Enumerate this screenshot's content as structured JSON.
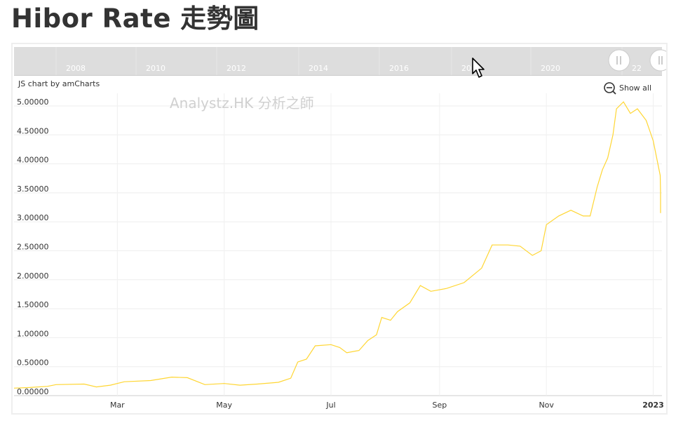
{
  "page": {
    "title": "Hibor Rate 走勢圖"
  },
  "chart_ui": {
    "credit": "JS chart by amCharts",
    "watermark": "Analystz.HK 分析之師",
    "show_all_label": "Show all",
    "scrollbar_years": [
      "2008",
      "2010",
      "2012",
      "2014",
      "2016",
      "20",
      "2020",
      "22"
    ]
  },
  "colors": {
    "series": "#FFD633",
    "title": "#333333",
    "grid": "#e6e6e6",
    "scrollbar": "#dddddd"
  },
  "chart_data": {
    "type": "line",
    "title": "Hibor Rate 走勢圖",
    "xlabel": "",
    "ylabel": "",
    "x_range": [
      "2022-01-01",
      "2023-01-06"
    ],
    "x_tick_labels": [
      {
        "label": "Mar",
        "date": "2022-03-01",
        "bold": false
      },
      {
        "label": "May",
        "date": "2022-05-01",
        "bold": false
      },
      {
        "label": "Jul",
        "date": "2022-07-01",
        "bold": false
      },
      {
        "label": "Sep",
        "date": "2022-09-01",
        "bold": false
      },
      {
        "label": "Nov",
        "date": "2022-11-01",
        "bold": false
      },
      {
        "label": "2023",
        "date": "2023-01-01",
        "bold": true
      }
    ],
    "y_ticks": [
      "0.00000",
      "0.50000",
      "1.00000",
      "1.50000",
      "2.00000",
      "2.50000",
      "3.00000",
      "3.50000",
      "4.00000",
      "4.50000",
      "5.00000"
    ],
    "ylim": [
      0,
      5.0
    ],
    "grid": true,
    "series": [
      {
        "values": [
          [
            "2022-01-01",
            0.13
          ],
          [
            "2022-01-10",
            0.14
          ],
          [
            "2022-01-20",
            0.16
          ],
          [
            "2022-01-25",
            0.19
          ],
          [
            "2022-02-10",
            0.2
          ],
          [
            "2022-02-17",
            0.15
          ],
          [
            "2022-02-25",
            0.18
          ],
          [
            "2022-03-05",
            0.24
          ],
          [
            "2022-03-20",
            0.26
          ],
          [
            "2022-04-01",
            0.32
          ],
          [
            "2022-04-10",
            0.31
          ],
          [
            "2022-04-20",
            0.19
          ],
          [
            "2022-05-01",
            0.21
          ],
          [
            "2022-05-10",
            0.18
          ],
          [
            "2022-05-20",
            0.2
          ],
          [
            "2022-06-01",
            0.23
          ],
          [
            "2022-06-08",
            0.3
          ],
          [
            "2022-06-12",
            0.58
          ],
          [
            "2022-06-17",
            0.63
          ],
          [
            "2022-06-22",
            0.86
          ],
          [
            "2022-07-01",
            0.88
          ],
          [
            "2022-07-06",
            0.83
          ],
          [
            "2022-07-10",
            0.74
          ],
          [
            "2022-07-17",
            0.78
          ],
          [
            "2022-07-22",
            0.95
          ],
          [
            "2022-07-27",
            1.05
          ],
          [
            "2022-07-30",
            1.35
          ],
          [
            "2022-08-04",
            1.3
          ],
          [
            "2022-08-08",
            1.45
          ],
          [
            "2022-08-15",
            1.6
          ],
          [
            "2022-08-21",
            1.9
          ],
          [
            "2022-08-27",
            1.8
          ],
          [
            "2022-09-05",
            1.85
          ],
          [
            "2022-09-15",
            1.95
          ],
          [
            "2022-09-25",
            2.2
          ],
          [
            "2022-10-01",
            2.6
          ],
          [
            "2022-10-10",
            2.6
          ],
          [
            "2022-10-17",
            2.58
          ],
          [
            "2022-10-24",
            2.42
          ],
          [
            "2022-10-29",
            2.5
          ],
          [
            "2022-11-01",
            2.95
          ],
          [
            "2022-11-08",
            3.1
          ],
          [
            "2022-11-15",
            3.2
          ],
          [
            "2022-11-22",
            3.1
          ],
          [
            "2022-11-26",
            3.1
          ],
          [
            "2022-11-30",
            3.6
          ],
          [
            "2022-12-03",
            3.9
          ],
          [
            "2022-12-06",
            4.1
          ],
          [
            "2022-12-09",
            4.5
          ],
          [
            "2022-12-11",
            4.95
          ],
          [
            "2022-12-15",
            5.07
          ],
          [
            "2022-12-19",
            4.87
          ],
          [
            "2022-12-23",
            4.95
          ],
          [
            "2022-12-28",
            4.75
          ],
          [
            "2023-01-01",
            4.4
          ],
          [
            "2023-01-05",
            3.8
          ],
          [
            "2023-01-07",
            3.5
          ],
          [
            "2023-01-09",
            3.5
          ],
          [
            "2023-01-12",
            3.15
          ]
        ]
      }
    ]
  }
}
